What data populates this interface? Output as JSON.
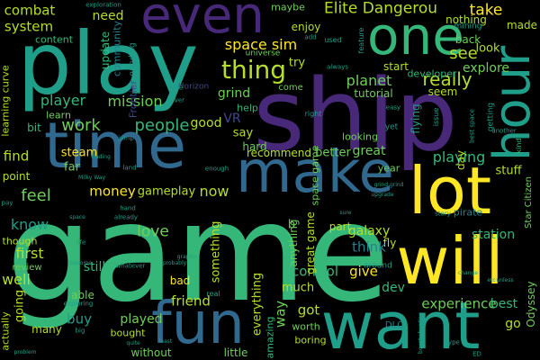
{
  "words": {
    "game": "game",
    "ship": "ship",
    "play": "play",
    "time": "time",
    "make": "make",
    "lot": "lot",
    "will": "will",
    "want": "want",
    "fun": "fun",
    "even": "even",
    "one": "one",
    "hour": "hour",
    "thing": "thing",
    "elite_dangerous": "Elite Dangerou",
    "space_sim": "space sim",
    "planet": "planet",
    "really": "really",
    "see": "see",
    "take": "take",
    "people": "people",
    "work": "work",
    "mission": "mission",
    "player": "player",
    "combat": "combat",
    "system": "system",
    "need": "need",
    "money": "money",
    "gameplay": "gameplay",
    "now": "now",
    "love": "love",
    "feel": "feel",
    "know": "know",
    "first": "first",
    "well": "well",
    "still": "still",
    "buy": "buy",
    "played": "played",
    "friend": "friend",
    "control": "control",
    "give": "give",
    "much": "much",
    "got": "got",
    "way": "way",
    "galaxy": "galaxy",
    "fly": "fly",
    "think": "think",
    "dev": "dev",
    "experience": "experience",
    "best": "best",
    "go": "go",
    "station": "station",
    "playing": "playing",
    "great": "great",
    "better": "better",
    "look": "look",
    "explore": "explore",
    "start": "start",
    "back": "back",
    "made": "made",
    "grind": "grind",
    "say": "say",
    "good": "good",
    "steam": "steam",
    "far": "far",
    "find": "find",
    "point": "point",
    "something": "something",
    "great_game": "great game",
    "space_game": "space game",
    "everything": "everything",
    "anything": "anything",
    "amazing": "amazing",
    "worth": "worth",
    "boring": "boring",
    "part": "part",
    "able": "able",
    "going": "going",
    "many": "many",
    "without": "without",
    "little": "little",
    "bought": "bought",
    "bad": "bad",
    "recommend": "recommend",
    "hard": "hard",
    "looking": "looking",
    "tutorial": "tutorial",
    "seem": "seem",
    "come": "come",
    "try": "try",
    "enjoy": "enjoy",
    "maybe": "maybe",
    "nothing": "nothing",
    "content": "content",
    "update": "update",
    "community": "community",
    "learn": "learn",
    "bit": "bit",
    "vr": "VR",
    "frontier": "Frontier",
    "day": "day",
    "year": "year",
    "stuff": "stuff",
    "odyssey": "Odyssey",
    "star_citizen": "Star Citizen",
    "learning_curve": "learning curve",
    "actually": "actually",
    "though": "though",
    "review": "review",
    "universe": "universe",
    "developer": "developer",
    "flying": "flying",
    "help": "help",
    "grinding": "grinding",
    "horizon": "Horizon",
    "pirate": "pirate",
    "kind": "kind",
    "dlc": "DLC",
    "real": "real",
    "around": "around",
    "used": "used",
    "always": "always",
    "feature": "feature",
    "right": "right",
    "exploration": "exploration",
    "mining": "mining",
    "issue": "issue",
    "another": "another",
    "enough": "enough",
    "whatever": "whatever",
    "b": "b",
    "easy": "easy",
    "jump": "jump",
    "land": "land",
    "nice": "nice",
    "hand": "hand",
    "trading": "trading",
    "unless": "unless",
    "change": "change",
    "problem": "problem",
    "least": "least",
    "type": "type",
    "quite": "quite",
    "big": "big",
    "etc": "etc",
    "bounty_hunting": "bounty hunting",
    "yet": "yet",
    "add": "add",
    "never": "never",
    "already": "already",
    "become": "become",
    "story": "story",
    "probably": "probably",
    "exploring": "exploring",
    "milky_way": "Milky Way",
    "upgrade": "upgrade",
    "grind_grind": "grind grind",
    "ed": "ED",
    "getting": "getting",
    "pay": "pay",
    "graphic": "graphic",
    "sure": "sure",
    "fun_small": "fun",
    "best_space": "best space",
    "space": "space",
    "life": "life"
  }
}
